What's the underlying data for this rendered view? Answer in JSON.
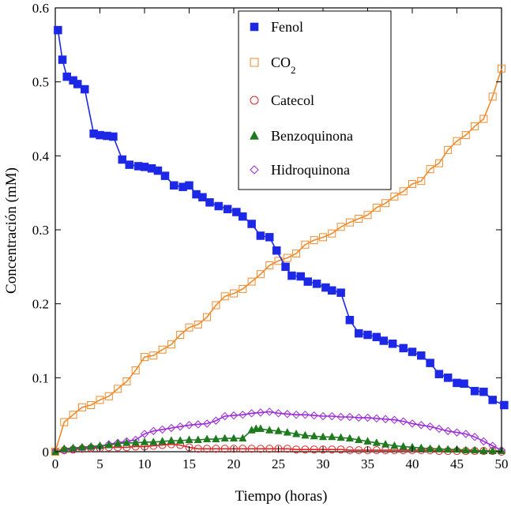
{
  "chart_data": {
    "type": "line",
    "title": "",
    "xlabel": "Tiempo (horas)",
    "ylabel": "Concentración (mM)",
    "xlim": [
      0,
      50
    ],
    "ylim": [
      0,
      0.6
    ],
    "xticks": [
      0,
      5,
      10,
      15,
      20,
      25,
      30,
      35,
      40,
      45,
      50
    ],
    "yticks": [
      0,
      0.1,
      0.2,
      0.3,
      0.4,
      0.5,
      0.6
    ],
    "ytick_labels": [
      "0",
      "0.1",
      "0.2",
      "0.3",
      "0.4",
      "0.5",
      "0.6"
    ],
    "grid": false,
    "legend_position": "top-center",
    "series": [
      {
        "name": "Fenol",
        "legend_label": "Fenol",
        "color": "#1c28e6",
        "marker": "square-filled",
        "x": [
          0.3,
          0.8,
          1.3,
          2,
          2.5,
          3.3,
          4.3,
          5,
          5.8,
          6.5,
          7.5,
          8.3,
          9.3,
          10,
          10.8,
          11.5,
          12.3,
          13.3,
          14.3,
          15,
          15.8,
          16.5,
          17.3,
          18.3,
          19.3,
          20.3,
          21,
          22,
          23,
          24,
          24.8,
          25.8,
          26.5,
          27.5,
          28.3,
          29.3,
          30.3,
          31,
          32,
          33,
          34,
          35,
          36,
          36.8,
          37.8,
          39,
          40,
          41,
          42,
          43,
          44,
          45,
          45.8,
          47,
          48,
          49,
          50.3
        ],
        "y": [
          0.57,
          0.53,
          0.507,
          0.502,
          0.497,
          0.49,
          0.43,
          0.428,
          0.427,
          0.426,
          0.395,
          0.388,
          0.386,
          0.385,
          0.383,
          0.38,
          0.373,
          0.36,
          0.358,
          0.36,
          0.348,
          0.344,
          0.337,
          0.332,
          0.328,
          0.324,
          0.318,
          0.308,
          0.292,
          0.29,
          0.272,
          0.25,
          0.238,
          0.237,
          0.23,
          0.227,
          0.222,
          0.218,
          0.215,
          0.178,
          0.16,
          0.158,
          0.155,
          0.15,
          0.146,
          0.14,
          0.135,
          0.13,
          0.12,
          0.105,
          0.1,
          0.093,
          0.092,
          0.082,
          0.081,
          0.07,
          0.063
        ]
      },
      {
        "name": "CO2",
        "legend_label": "CO",
        "legend_subscript": "2",
        "color": "#f08a2c",
        "marker": "square-open",
        "x": [
          0,
          1,
          2,
          3,
          4,
          5,
          6,
          7,
          8,
          9,
          10,
          11,
          12,
          13,
          14,
          15,
          16,
          17,
          18,
          19,
          20,
          21,
          22,
          23,
          24,
          25,
          26,
          27,
          28,
          29,
          30,
          31,
          32,
          33,
          34,
          35,
          36,
          37,
          38,
          39,
          40,
          41,
          42,
          43,
          44,
          45,
          46,
          47,
          48,
          49,
          50
        ],
        "y": [
          0,
          0.04,
          0.05,
          0.06,
          0.063,
          0.07,
          0.075,
          0.085,
          0.095,
          0.11,
          0.128,
          0.13,
          0.138,
          0.145,
          0.158,
          0.168,
          0.172,
          0.182,
          0.198,
          0.21,
          0.214,
          0.22,
          0.23,
          0.24,
          0.252,
          0.258,
          0.262,
          0.268,
          0.28,
          0.286,
          0.29,
          0.295,
          0.304,
          0.31,
          0.315,
          0.32,
          0.33,
          0.336,
          0.345,
          0.352,
          0.362,
          0.366,
          0.382,
          0.39,
          0.408,
          0.42,
          0.428,
          0.44,
          0.45,
          0.48,
          0.518
        ]
      },
      {
        "name": "Catecol",
        "legend_label": "Catecol",
        "color": "#e02323",
        "marker": "circle-open",
        "x": [
          0,
          1,
          2,
          3,
          4,
          5,
          6,
          7,
          8,
          9,
          10,
          11,
          12,
          13,
          14,
          15,
          16,
          17,
          18,
          19,
          20,
          21,
          22,
          23,
          24,
          25,
          26,
          27,
          28,
          29,
          30,
          31,
          32,
          33,
          34,
          35,
          36,
          37,
          38,
          39,
          40,
          41,
          42,
          43,
          44,
          45,
          46,
          47,
          48,
          49,
          50
        ],
        "y": [
          0,
          0.002,
          0.003,
          0.004,
          0.005,
          0.005,
          0.006,
          0.006,
          0.006,
          0.007,
          0.007,
          0.008,
          0.009,
          0.01,
          0.009,
          0.006,
          0.004,
          0.004,
          0.004,
          0.004,
          0.004,
          0.004,
          0.004,
          0.004,
          0.004,
          0.004,
          0.004,
          0.003,
          0.003,
          0.003,
          0.003,
          0.003,
          0.003,
          0.002,
          0.002,
          0.002,
          0.002,
          0.002,
          0.002,
          0.002,
          0.002,
          0.002,
          0.002,
          0.001,
          0.001,
          0.001,
          0.001,
          0.001,
          0.001,
          0.001,
          0
        ]
      },
      {
        "name": "Benzoquinona",
        "legend_label": "Benzoquinona",
        "color": "#1e7a1e",
        "marker": "triangle-filled",
        "x": [
          0,
          1,
          2,
          3,
          4,
          5,
          6,
          7,
          8,
          9,
          10,
          11,
          12,
          13,
          14,
          15,
          16,
          17,
          18,
          19,
          20,
          21,
          22,
          22.5,
          23,
          24,
          25,
          26,
          27,
          28,
          29,
          30,
          31,
          32,
          33,
          34,
          35,
          36,
          37,
          38,
          39,
          40,
          41,
          42,
          43,
          44,
          45,
          46,
          47,
          48,
          49,
          50
        ],
        "y": [
          0,
          0.004,
          0.005,
          0.006,
          0.007,
          0.008,
          0.009,
          0.011,
          0.012,
          0.012,
          0.013,
          0.013,
          0.014,
          0.015,
          0.015,
          0.016,
          0.016,
          0.017,
          0.017,
          0.018,
          0.018,
          0.018,
          0.029,
          0.031,
          0.031,
          0.029,
          0.028,
          0.026,
          0.024,
          0.022,
          0.021,
          0.02,
          0.02,
          0.019,
          0.018,
          0.016,
          0.014,
          0.012,
          0.01,
          0.008,
          0.007,
          0.006,
          0.005,
          0.004,
          0.004,
          0.003,
          0.003,
          0.002,
          0.002,
          0.001,
          0.001,
          0.001
        ]
      },
      {
        "name": "Hidroquinona",
        "legend_label": "Hidroquinona",
        "color": "#9a2cd6",
        "marker": "diamond-open",
        "x": [
          0,
          1,
          2,
          3,
          4,
          5,
          6,
          7,
          8,
          9,
          10,
          11,
          12,
          13,
          14,
          15,
          16,
          17,
          18,
          19,
          20,
          21,
          22,
          23,
          24,
          25,
          26,
          27,
          28,
          29,
          30,
          31,
          32,
          33,
          34,
          35,
          36,
          37,
          38,
          39,
          40,
          41,
          42,
          43,
          44,
          45,
          46,
          47,
          48,
          49,
          50
        ],
        "y": [
          0,
          0.002,
          0.004,
          0.005,
          0.006,
          0.007,
          0.01,
          0.012,
          0.014,
          0.016,
          0.024,
          0.028,
          0.03,
          0.032,
          0.034,
          0.036,
          0.037,
          0.038,
          0.042,
          0.048,
          0.049,
          0.05,
          0.052,
          0.053,
          0.054,
          0.052,
          0.051,
          0.05,
          0.05,
          0.049,
          0.048,
          0.048,
          0.047,
          0.047,
          0.046,
          0.046,
          0.045,
          0.044,
          0.043,
          0.041,
          0.038,
          0.036,
          0.034,
          0.031,
          0.028,
          0.026,
          0.024,
          0.02,
          0.014,
          0.008,
          0.002
        ]
      }
    ]
  }
}
